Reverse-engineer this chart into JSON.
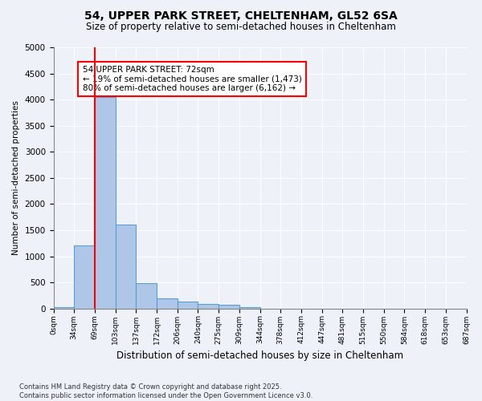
{
  "title": "54, UPPER PARK STREET, CHELTENHAM, GL52 6SA",
  "subtitle": "Size of property relative to semi-detached houses in Cheltenham",
  "xlabel": "Distribution of semi-detached houses by size in Cheltenham",
  "ylabel": "Number of semi-detached properties",
  "bin_labels": [
    "0sqm",
    "34sqm",
    "69sqm",
    "103sqm",
    "137sqm",
    "172sqm",
    "206sqm",
    "240sqm",
    "275sqm",
    "309sqm",
    "344sqm",
    "378sqm",
    "412sqm",
    "447sqm",
    "481sqm",
    "515sqm",
    "550sqm",
    "584sqm",
    "618sqm",
    "653sqm",
    "687sqm"
  ],
  "bar_heights": [
    30,
    1200,
    4050,
    1600,
    480,
    200,
    140,
    80,
    65,
    30,
    0,
    0,
    0,
    0,
    0,
    0,
    0,
    0,
    0,
    0
  ],
  "bar_color": "#aec6e8",
  "bar_edge_color": "#5a9fd4",
  "red_line_x": 2.0,
  "ylim": [
    0,
    5000
  ],
  "yticks": [
    0,
    500,
    1000,
    1500,
    2000,
    2500,
    3000,
    3500,
    4000,
    4500,
    5000
  ],
  "annotation_title": "54 UPPER PARK STREET: 72sqm",
  "annotation_line1": "← 19% of semi-detached houses are smaller (1,473)",
  "annotation_line2": "80% of semi-detached houses are larger (6,162) →",
  "footer_line1": "Contains HM Land Registry data © Crown copyright and database right 2025.",
  "footer_line2": "Contains public sector information licensed under the Open Government Licence v3.0.",
  "background_color": "#eef2f8",
  "plot_bg_color": "#eef2f8",
  "grid_color": "#ffffff"
}
